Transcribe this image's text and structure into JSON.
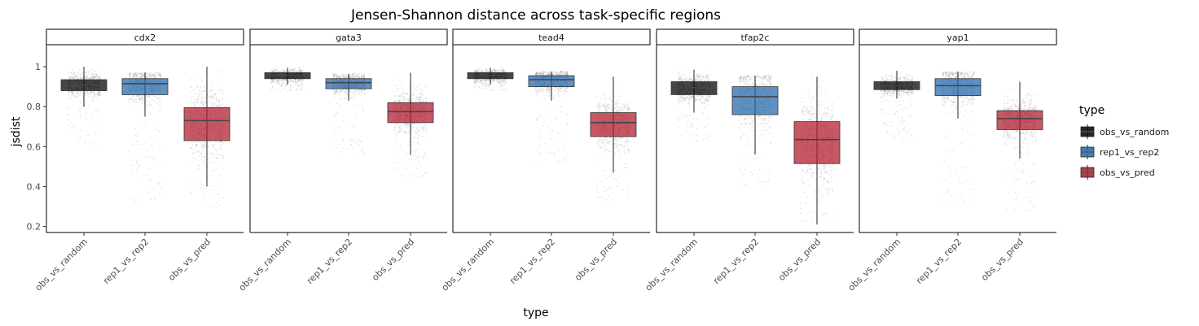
{
  "chart_data": {
    "type": "boxplot",
    "title": "Jensen-Shannon distance across task-specific regions",
    "xlabel": "type",
    "ylabel": "jsdist",
    "ylim": [
      0.17,
      1.11
    ],
    "yticks": [
      0.2,
      0.4,
      0.6,
      0.8,
      1.0
    ],
    "ytick_labels": [
      "0.2",
      "0.4",
      "0.6",
      "0.8",
      "1"
    ],
    "categories": [
      "obs_vs_random",
      "rep1_vs_rep2",
      "obs_vs_pred"
    ],
    "legend": {
      "title": "type",
      "position": "right",
      "entries": [
        {
          "label": "obs_vs_random",
          "color": "#000000"
        },
        {
          "label": "rep1_vs_rep2",
          "color": "#2166ac"
        },
        {
          "label": "obs_vs_pred",
          "color": "#b2182b"
        }
      ]
    },
    "jitter_points": true,
    "facets": [
      {
        "name": "cdx2",
        "boxes": [
          {
            "category": "obs_vs_random",
            "min": 0.8,
            "q1": 0.88,
            "median": 0.91,
            "q3": 0.935,
            "max": 1.0,
            "outlier_low": 0.6
          },
          {
            "category": "rep1_vs_rep2",
            "min": 0.75,
            "q1": 0.86,
            "median": 0.915,
            "q3": 0.94,
            "max": 0.97,
            "outlier_low": 0.31
          },
          {
            "category": "obs_vs_pred",
            "min": 0.4,
            "q1": 0.63,
            "median": 0.73,
            "q3": 0.795,
            "max": 1.0,
            "outlier_low": 0.28
          }
        ]
      },
      {
        "name": "gata3",
        "boxes": [
          {
            "category": "obs_vs_random",
            "min": 0.91,
            "q1": 0.94,
            "median": 0.955,
            "q3": 0.97,
            "max": 0.995,
            "outlier_low": 0.88
          },
          {
            "category": "rep1_vs_rep2",
            "min": 0.83,
            "q1": 0.89,
            "median": 0.92,
            "q3": 0.94,
            "max": 0.965,
            "outlier_low": 0.56
          },
          {
            "category": "obs_vs_pred",
            "min": 0.56,
            "q1": 0.72,
            "median": 0.775,
            "q3": 0.82,
            "max": 0.97,
            "outlier_low": 0.45
          }
        ]
      },
      {
        "name": "tead4",
        "boxes": [
          {
            "category": "obs_vs_random",
            "min": 0.91,
            "q1": 0.94,
            "median": 0.955,
            "q3": 0.97,
            "max": 0.995,
            "outlier_low": 0.88
          },
          {
            "category": "rep1_vs_rep2",
            "min": 0.83,
            "q1": 0.9,
            "median": 0.935,
            "q3": 0.955,
            "max": 0.975,
            "outlier_low": 0.51
          },
          {
            "category": "obs_vs_pred",
            "min": 0.47,
            "q1": 0.65,
            "median": 0.72,
            "q3": 0.77,
            "max": 0.95,
            "outlier_low": 0.33
          }
        ]
      },
      {
        "name": "tfap2c",
        "boxes": [
          {
            "category": "obs_vs_random",
            "min": 0.77,
            "q1": 0.86,
            "median": 0.895,
            "q3": 0.925,
            "max": 0.985,
            "outlier_low": 0.62
          },
          {
            "category": "rep1_vs_rep2",
            "min": 0.56,
            "q1": 0.76,
            "median": 0.85,
            "q3": 0.9,
            "max": 0.955,
            "outlier_low": 0.4
          },
          {
            "category": "obs_vs_pred",
            "min": 0.21,
            "q1": 0.515,
            "median": 0.635,
            "q3": 0.725,
            "max": 0.95,
            "outlier_low": 0.21
          }
        ]
      },
      {
        "name": "yap1",
        "boxes": [
          {
            "category": "obs_vs_random",
            "min": 0.84,
            "q1": 0.885,
            "median": 0.905,
            "q3": 0.925,
            "max": 0.98,
            "outlier_low": 0.64
          },
          {
            "category": "rep1_vs_rep2",
            "min": 0.74,
            "q1": 0.855,
            "median": 0.905,
            "q3": 0.94,
            "max": 0.975,
            "outlier_low": 0.3
          },
          {
            "category": "obs_vs_pred",
            "min": 0.54,
            "q1": 0.685,
            "median": 0.74,
            "q3": 0.78,
            "max": 0.925,
            "outlier_low": 0.28
          }
        ]
      }
    ]
  }
}
